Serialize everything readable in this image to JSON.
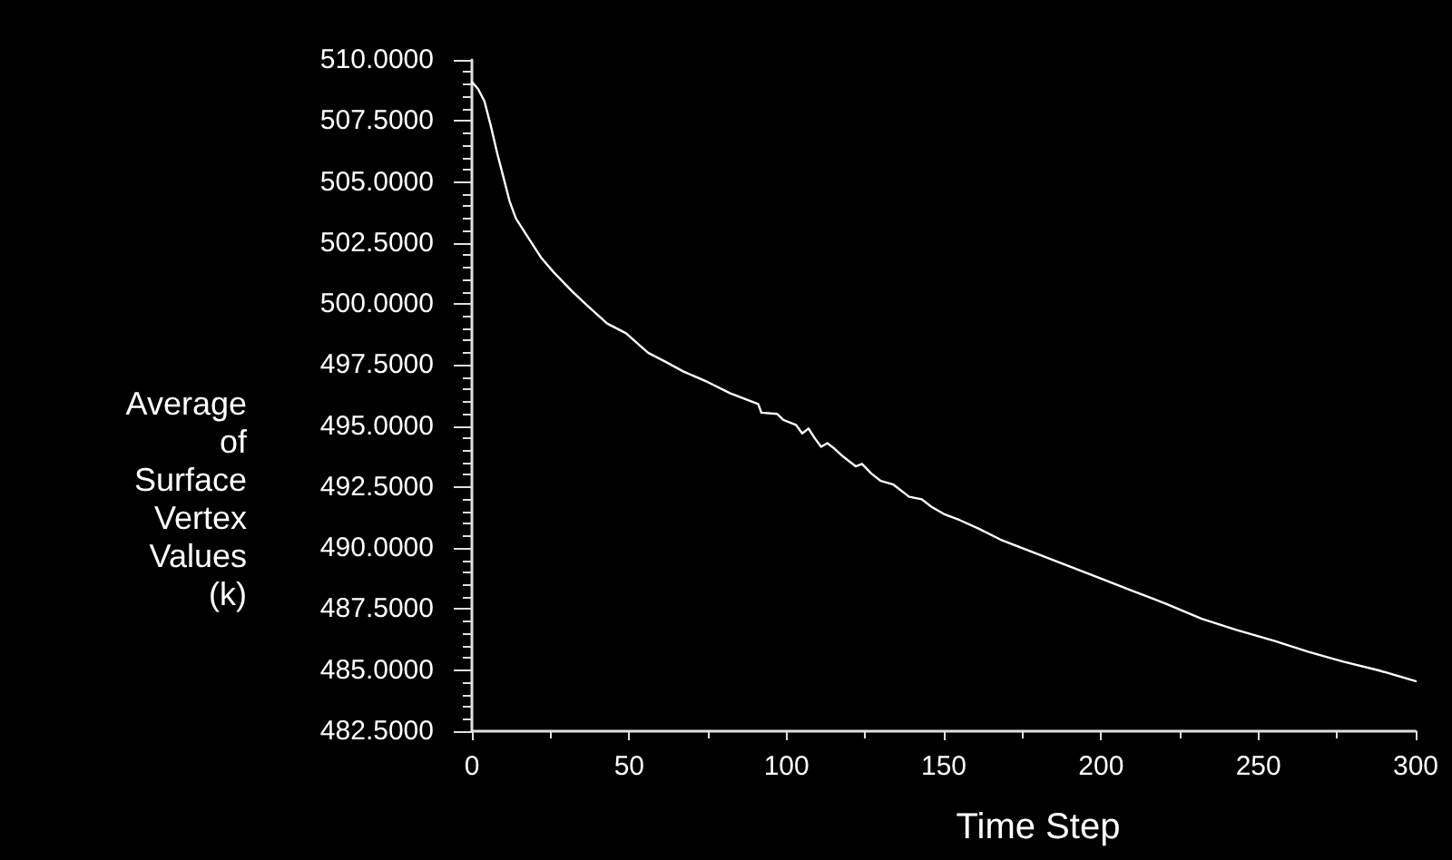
{
  "chart_data": {
    "type": "line",
    "xlabel": "Time Step",
    "ylabel": "Average\nof\nSurface\nVertex\nValues\n(k)",
    "x": [
      0,
      2,
      4,
      6,
      8,
      10,
      12,
      14,
      17,
      19,
      22,
      26,
      32,
      37,
      43,
      49,
      56,
      62,
      67,
      75,
      82,
      88,
      91,
      92,
      97,
      99,
      103,
      105,
      107,
      109,
      111,
      113,
      115,
      118,
      122,
      124,
      127,
      130,
      134,
      139,
      143,
      146,
      150,
      155,
      161,
      168,
      176,
      187,
      198,
      210,
      221,
      232,
      243,
      255,
      266,
      277,
      288,
      300
    ],
    "series": [
      {
        "color": "#ffffff",
        "values": [
          509.1,
          508.8,
          508.3,
          507.3,
          506.2,
          505.2,
          504.2,
          503.5,
          502.9,
          502.5,
          501.9,
          501.3,
          500.5,
          499.9,
          499.2,
          498.8,
          498.0,
          497.6,
          497.25,
          496.8,
          496.35,
          496.05,
          495.9,
          495.55,
          495.5,
          495.25,
          495.05,
          494.7,
          494.9,
          494.5,
          494.15,
          494.3,
          494.1,
          493.75,
          493.35,
          493.45,
          493.05,
          492.75,
          492.6,
          492.1,
          492.0,
          491.7,
          491.4,
          491.15,
          490.8,
          490.35,
          489.95,
          489.4,
          488.85,
          488.25,
          487.7,
          487.1,
          486.65,
          486.2,
          485.75,
          485.35,
          485.0,
          484.55
        ]
      }
    ],
    "xlim": [
      0,
      300
    ],
    "xticks": [
      0,
      50,
      100,
      150,
      200,
      250,
      300
    ],
    "ylim": [
      482.5,
      510
    ],
    "yticks": [
      {
        "value": 482.5,
        "label": "482.5000"
      },
      {
        "value": 485,
        "label": "485.0000"
      },
      {
        "value": 487.5,
        "label": "487.5000"
      },
      {
        "value": 490,
        "label": "490.0000"
      },
      {
        "value": 492.5,
        "label": "492.5000"
      },
      {
        "value": 495,
        "label": "495.0000"
      },
      {
        "value": 497.5,
        "label": "497.5000"
      },
      {
        "value": 500,
        "label": "500.0000"
      },
      {
        "value": 502.5,
        "label": "502.5000"
      },
      {
        "value": 505,
        "label": "505.0000"
      },
      {
        "value": 507.5,
        "label": "507.5000"
      },
      {
        "value": 510,
        "label": "510.0000"
      }
    ]
  }
}
